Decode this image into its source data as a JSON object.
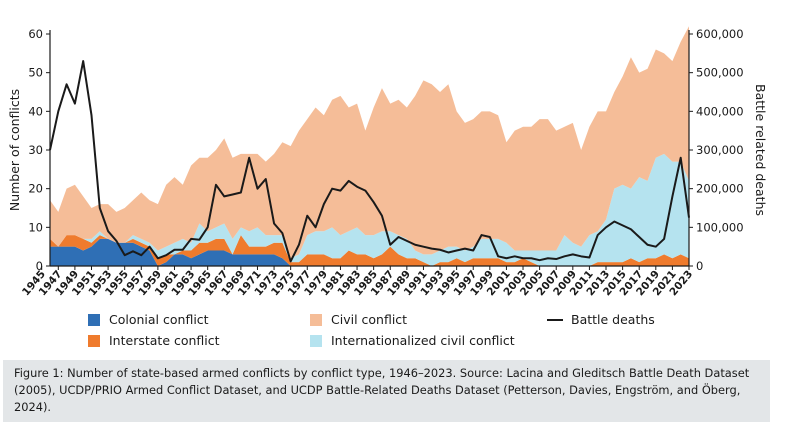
{
  "chart_data": {
    "type": "area",
    "stacked": true,
    "title": "",
    "xlabel": "",
    "ylabel_left": "Number of conflicts",
    "ylabel_right": "Battle related deaths",
    "ylim_left": [
      0,
      60
    ],
    "ylim_right": [
      0,
      600000
    ],
    "x_range": [
      1946,
      2023
    ],
    "x_tick_labels": [
      "1945",
      "1947",
      "1949",
      "1951",
      "1953",
      "1955",
      "1957",
      "1959",
      "1961",
      "1963",
      "1965",
      "1967",
      "1969",
      "1971",
      "1973",
      "1975",
      "1977",
      "1979",
      "1981",
      "1983",
      "1985",
      "1987",
      "1989",
      "1991",
      "1993",
      "1995",
      "1997",
      "1999",
      "2001",
      "2003",
      "2005",
      "2007",
      "2009",
      "2011",
      "2013",
      "2015",
      "2017",
      "2019",
      "2021",
      "2023"
    ],
    "y_ticks_left": [
      "0",
      "10",
      "20",
      "30",
      "40",
      "50",
      "60"
    ],
    "y_ticks_right": [
      "0",
      "100,000",
      "200,000",
      "300,000",
      "400,000",
      "500,000",
      "600,000"
    ],
    "years": [
      1946,
      1947,
      1948,
      1949,
      1950,
      1951,
      1952,
      1953,
      1954,
      1955,
      1956,
      1957,
      1958,
      1959,
      1960,
      1961,
      1962,
      1963,
      1964,
      1965,
      1966,
      1967,
      1968,
      1969,
      1970,
      1971,
      1972,
      1973,
      1974,
      1975,
      1976,
      1977,
      1978,
      1979,
      1980,
      1981,
      1982,
      1983,
      1984,
      1985,
      1986,
      1987,
      1988,
      1989,
      1990,
      1991,
      1992,
      1993,
      1994,
      1995,
      1996,
      1997,
      1998,
      1999,
      2000,
      2001,
      2002,
      2003,
      2004,
      2005,
      2006,
      2007,
      2008,
      2009,
      2010,
      2011,
      2012,
      2013,
      2014,
      2015,
      2016,
      2017,
      2018,
      2019,
      2020,
      2021,
      2022,
      2023
    ],
    "series": [
      {
        "name": "Colonial conflict",
        "color": "#2f6fb5",
        "values": [
          5,
          5,
          5,
          5,
          4,
          5,
          7,
          7,
          6,
          6,
          6,
          5,
          4,
          0,
          1,
          3,
          3,
          2,
          3,
          4,
          4,
          4,
          3,
          3,
          3,
          3,
          3,
          3,
          2,
          0,
          0,
          0,
          0,
          0,
          0,
          0,
          0,
          0,
          0,
          0,
          0,
          0,
          0,
          0,
          0,
          0,
          0,
          0,
          0,
          0,
          0,
          0,
          0,
          0,
          0,
          0,
          0,
          0,
          0,
          0,
          0,
          0,
          0,
          0,
          0,
          0,
          0,
          0,
          0,
          0,
          0,
          0,
          0,
          0,
          0,
          0,
          0,
          0
        ]
      },
      {
        "name": "Interstate conflict",
        "color": "#ef7b2d",
        "values": [
          2,
          0,
          3,
          3,
          3,
          1,
          1,
          0,
          0,
          0,
          1,
          1,
          1,
          2,
          2,
          0,
          1,
          2,
          3,
          2,
          3,
          3,
          0,
          5,
          2,
          2,
          2,
          3,
          4,
          1,
          1,
          3,
          3,
          3,
          2,
          2,
          4,
          3,
          3,
          2,
          3,
          5,
          3,
          2,
          2,
          1,
          0,
          1,
          1,
          2,
          1,
          2,
          2,
          2,
          2,
          1,
          1,
          2,
          1,
          0,
          0,
          0,
          0,
          0,
          0,
          0,
          1,
          1,
          1,
          1,
          2,
          1,
          2,
          2,
          3,
          2,
          3,
          2
        ]
      },
      {
        "name": "Internationalized civil conflict",
        "color": "#b5e3ef",
        "values": [
          0,
          0,
          0,
          0,
          0,
          1,
          1,
          0,
          0,
          0,
          1,
          1,
          1,
          2,
          2,
          3,
          3,
          2,
          5,
          3,
          3,
          4,
          4,
          2,
          4,
          5,
          3,
          2,
          2,
          1,
          2,
          5,
          6,
          6,
          8,
          6,
          5,
          7,
          5,
          6,
          6,
          4,
          5,
          5,
          2,
          2,
          3,
          3,
          4,
          3,
          3,
          3,
          5,
          5,
          5,
          5,
          3,
          2,
          3,
          4,
          4,
          4,
          8,
          6,
          5,
          8,
          8,
          11,
          19,
          20,
          18,
          22,
          20,
          26,
          26,
          25,
          24,
          20
        ]
      },
      {
        "name": "Civil conflict",
        "color": "#f5bd98",
        "values": [
          10,
          9,
          12,
          13,
          11,
          8,
          7,
          9,
          8,
          9,
          9,
          12,
          11,
          12,
          16,
          17,
          14,
          20,
          17,
          19,
          20,
          22,
          21,
          19,
          20,
          19,
          19,
          21,
          24,
          29,
          32,
          30,
          32,
          30,
          33,
          36,
          32,
          32,
          27,
          33,
          37,
          33,
          35,
          34,
          40,
          45,
          44,
          41,
          42,
          35,
          33,
          33,
          33,
          33,
          32,
          26,
          31,
          32,
          32,
          34,
          34,
          31,
          28,
          31,
          25,
          28,
          31,
          28,
          25,
          28,
          34,
          27,
          29,
          28,
          26,
          26,
          31,
          40
        ]
      },
      {
        "name": "Battle deaths",
        "color": "#1a1a1a",
        "type": "line",
        "values": [
          300000,
          400000,
          470000,
          420000,
          530000,
          390000,
          150000,
          90000,
          65000,
          28000,
          38000,
          28000,
          50000,
          20000,
          28000,
          42000,
          42000,
          70000,
          68000,
          100000,
          210000,
          180000,
          185000,
          190000,
          280000,
          200000,
          225000,
          110000,
          85000,
          12000,
          55000,
          130000,
          100000,
          160000,
          200000,
          195000,
          220000,
          205000,
          195000,
          165000,
          130000,
          55000,
          75000,
          65000,
          55000,
          50000,
          45000,
          42000,
          35000,
          40000,
          45000,
          40000,
          80000,
          75000,
          25000,
          20000,
          25000,
          20000,
          20000,
          15000,
          20000,
          18000,
          25000,
          30000,
          25000,
          22000,
          80000,
          100000,
          115000,
          105000,
          95000,
          75000,
          55000,
          50000,
          70000,
          180000,
          280000,
          125000
        ]
      }
    ]
  },
  "legend": {
    "colonial": "Colonial conflict",
    "interstate": "Interstate conflict",
    "civil": "Civil conflict",
    "internationalized": "Internationalized civil conflict",
    "battle_deaths": "Battle deaths"
  },
  "caption": "Figure 1: Number of state-based armed conflicts by conflict type, 1946–2023. Source: Lacina and Gleditsch Battle Death Dataset (2005), UCDP/PRIO Armed Conflict Dataset, and UCDP Battle-Related Deaths Dataset (Petterson, Davies, Engström, and Öberg, 2024)."
}
